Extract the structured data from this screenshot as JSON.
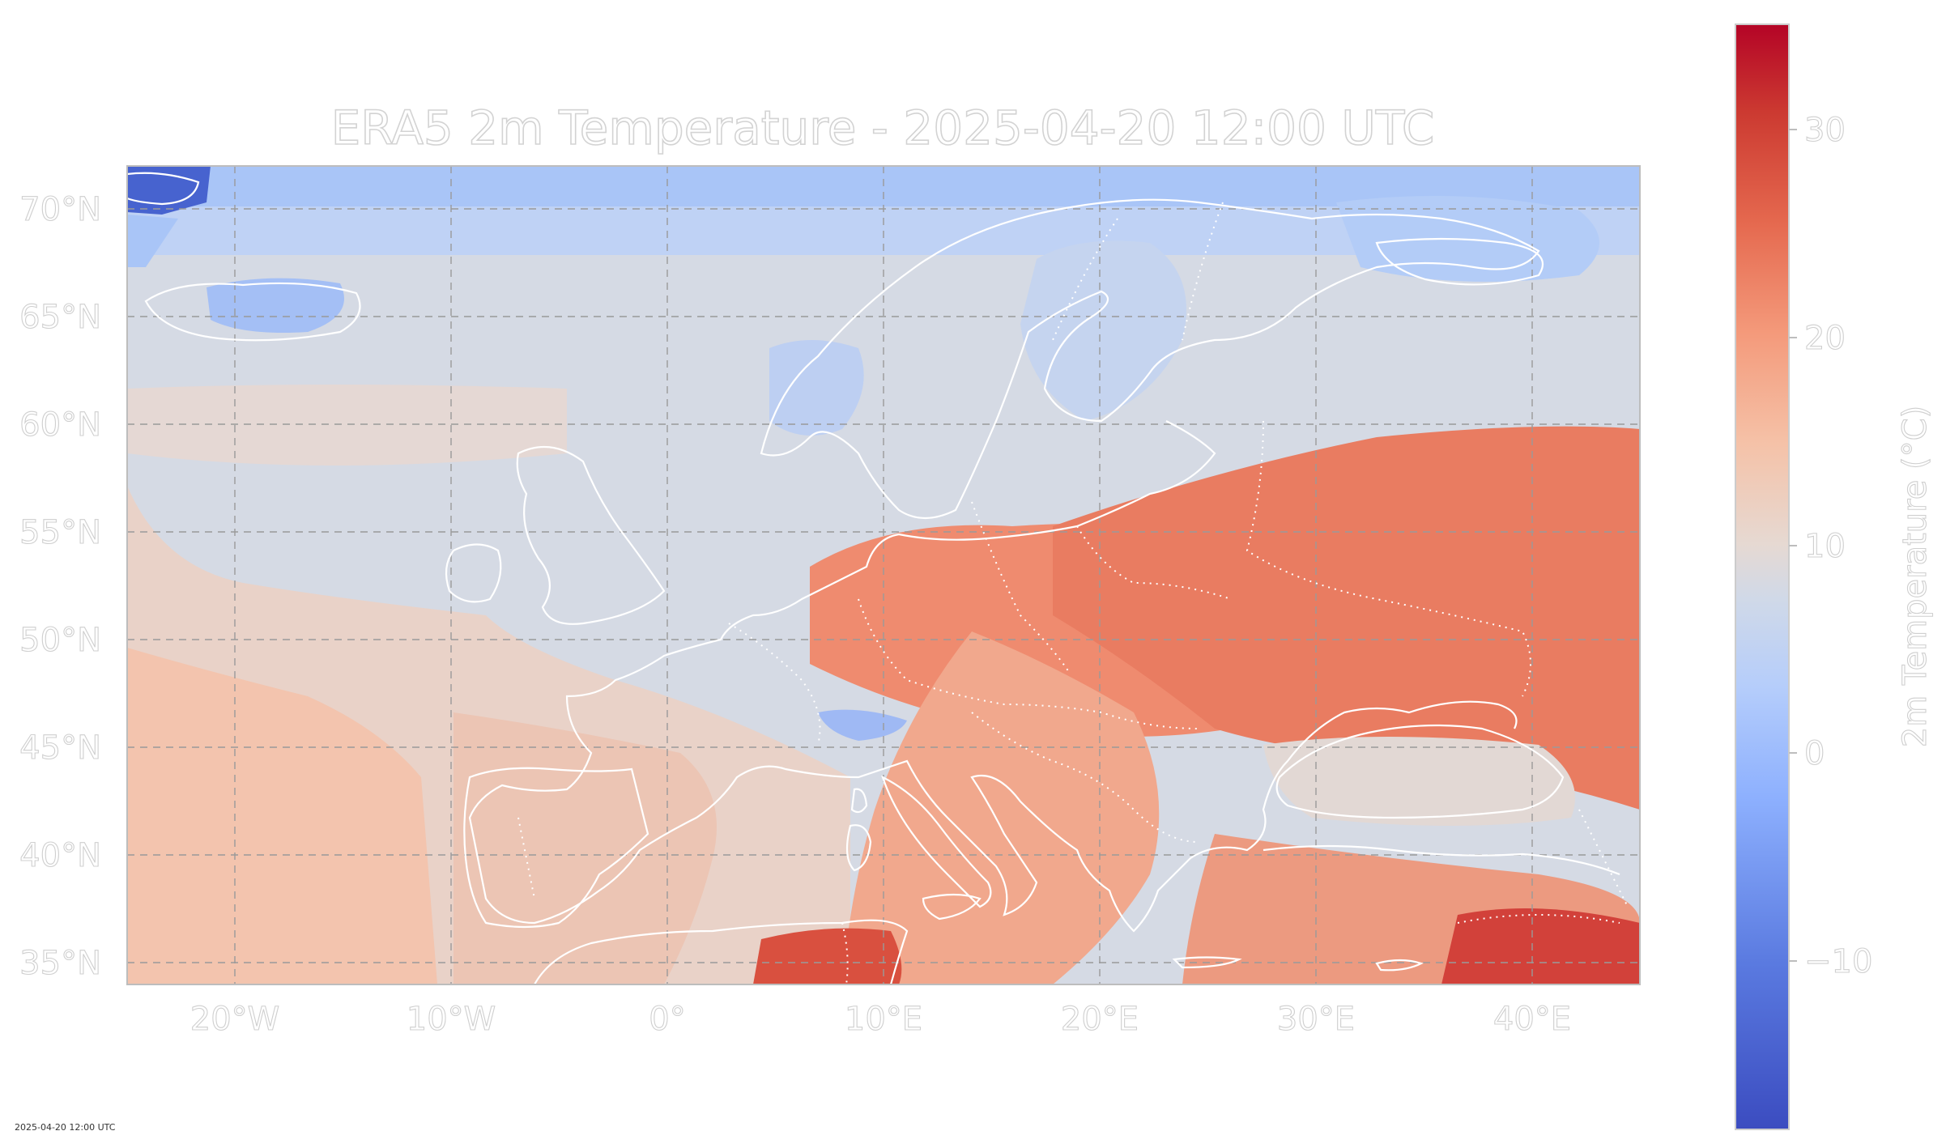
{
  "title": "ERA5 2m Temperature - 2025-04-20 12:00 UTC",
  "map": {
    "extent": {
      "lon": [
        -25,
        45
      ],
      "lat": [
        34,
        72
      ]
    },
    "gridlines": true,
    "coastline_color": "#ffffff",
    "border_style": "dotted",
    "lon_ticks": [
      {
        "value": -20,
        "label": "20°W"
      },
      {
        "value": -10,
        "label": "10°W"
      },
      {
        "value": 0,
        "label": "0°"
      },
      {
        "value": 10,
        "label": "10°E"
      },
      {
        "value": 20,
        "label": "20°E"
      },
      {
        "value": 30,
        "label": "30°E"
      },
      {
        "value": 40,
        "label": "40°E"
      }
    ],
    "lat_ticks": [
      {
        "value": 70,
        "label": "70°N"
      },
      {
        "value": 65,
        "label": "65°N"
      },
      {
        "value": 60,
        "label": "60°N"
      },
      {
        "value": 55,
        "label": "55°N"
      },
      {
        "value": 50,
        "label": "50°N"
      },
      {
        "value": 45,
        "label": "45°N"
      },
      {
        "value": 40,
        "label": "40°N"
      },
      {
        "value": 35,
        "label": "35°N"
      }
    ]
  },
  "colorbar": {
    "label": "2m Temperature (°C)",
    "range": [
      -17,
      35
    ],
    "colormap": "coolwarm",
    "ticks": [
      {
        "value": 30,
        "label": "30"
      },
      {
        "value": 20,
        "label": "20"
      },
      {
        "value": 10,
        "label": "10"
      },
      {
        "value": 0,
        "label": "0"
      },
      {
        "value": -10,
        "label": "−10"
      }
    ]
  },
  "footnote": "2025-04-20 12:00 UTC"
}
